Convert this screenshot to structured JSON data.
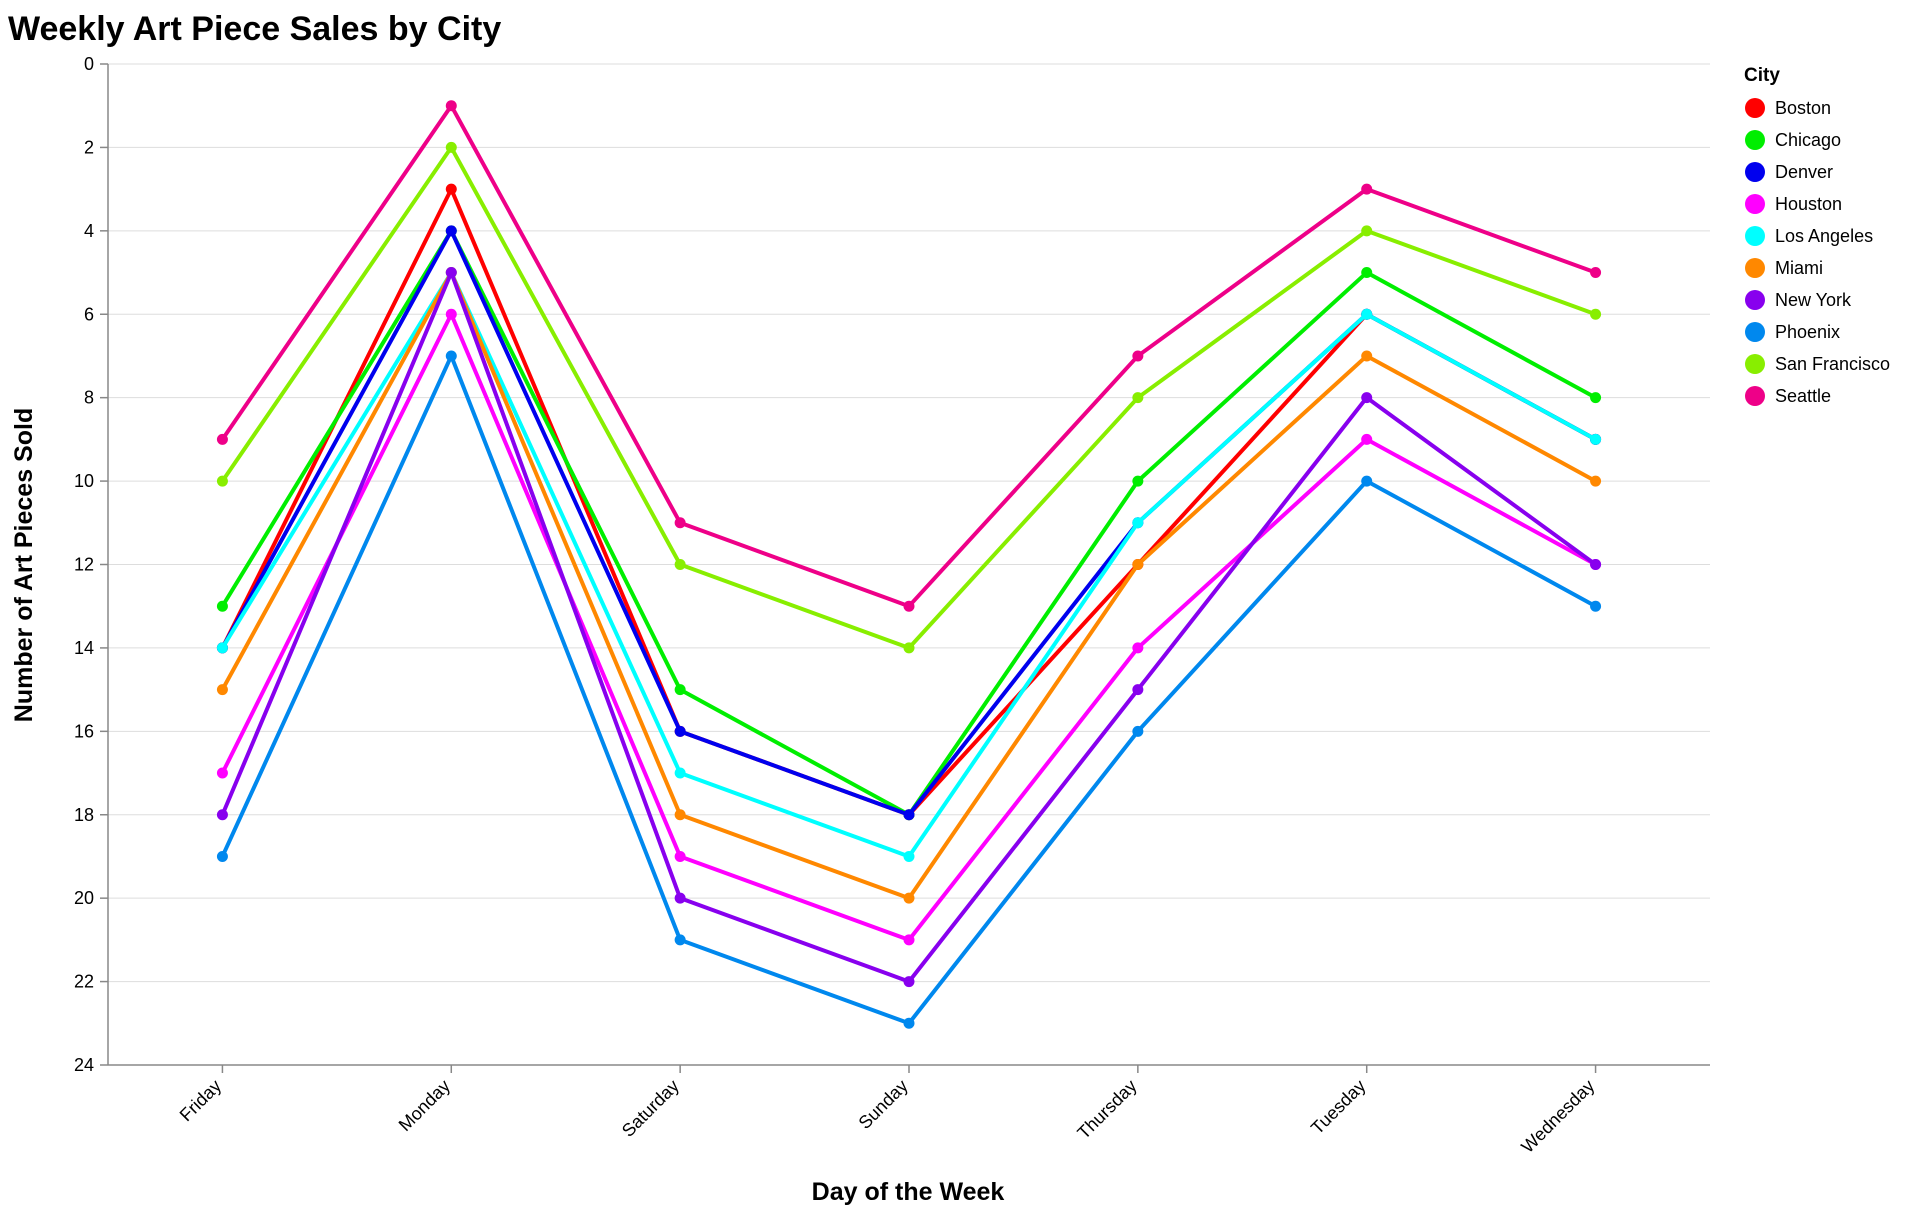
{
  "chart_data": {
    "type": "line",
    "title": "Weekly Art Piece Sales by City",
    "xlabel": "Day of the Week",
    "ylabel": "Number of Art Pieces Sold",
    "categories": [
      "Friday",
      "Monday",
      "Saturday",
      "Sunday",
      "Thursday",
      "Tuesday",
      "Wednesday"
    ],
    "ylim": [
      0,
      24
    ],
    "y_ticks": [
      0,
      2,
      4,
      6,
      8,
      10,
      12,
      14,
      16,
      18,
      20,
      22,
      24
    ],
    "y_reversed": true,
    "grid": true,
    "legend_title": "City",
    "legend_position": "right",
    "series": [
      {
        "name": "Boston",
        "color": "#ff0000",
        "values": [
          14,
          3,
          16,
          18,
          12,
          6,
          9
        ]
      },
      {
        "name": "Chicago",
        "color": "#00ee00",
        "values": [
          13,
          4,
          15,
          18,
          10,
          5,
          8
        ]
      },
      {
        "name": "Denver",
        "color": "#0000ee",
        "values": [
          14,
          4,
          16,
          18,
          11,
          6,
          9
        ]
      },
      {
        "name": "Houston",
        "color": "#ff00ff",
        "values": [
          17,
          6,
          19,
          21,
          14,
          9,
          12
        ]
      },
      {
        "name": "Los Angeles",
        "color": "#00ffff",
        "values": [
          14,
          5,
          17,
          19,
          11,
          6,
          9
        ]
      },
      {
        "name": "Miami",
        "color": "#ff8800",
        "values": [
          15,
          5,
          18,
          20,
          12,
          7,
          10
        ]
      },
      {
        "name": "New York",
        "color": "#8800ee",
        "values": [
          18,
          5,
          20,
          22,
          15,
          8,
          12
        ]
      },
      {
        "name": "Phoenix",
        "color": "#0088ee",
        "values": [
          19,
          7,
          21,
          23,
          16,
          10,
          13
        ]
      },
      {
        "name": "San Francisco",
        "color": "#88ee00",
        "values": [
          10,
          2,
          12,
          14,
          8,
          4,
          6
        ]
      },
      {
        "name": "Seattle",
        "color": "#ee0088",
        "values": [
          9,
          1,
          11,
          13,
          7,
          3,
          5
        ]
      }
    ]
  }
}
